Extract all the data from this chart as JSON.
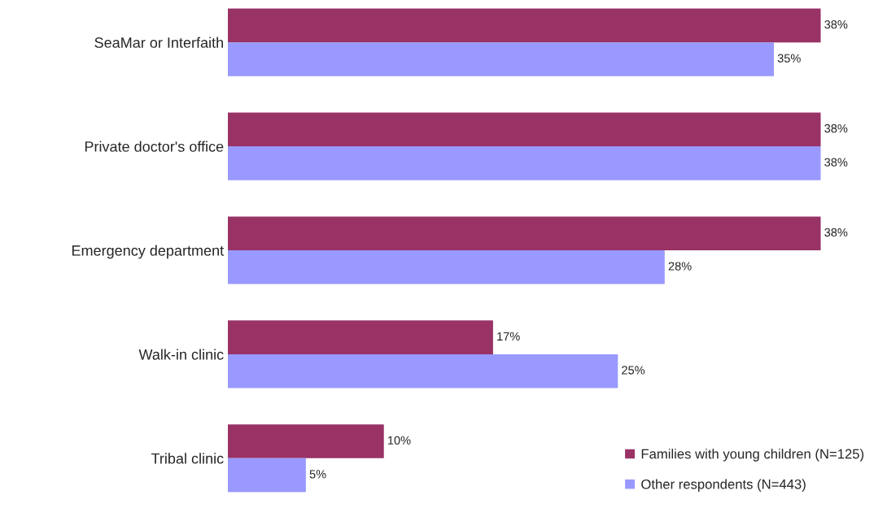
{
  "chart_data": {
    "type": "bar",
    "orientation": "horizontal",
    "categories": [
      "SeaMar or Interfaith",
      "Private doctor's office",
      "Emergency department",
      "Walk-in clinic",
      "Tribal clinic"
    ],
    "series": [
      {
        "name": "Families with young children (N=125)",
        "color": "#993366",
        "values": [
          38,
          38,
          38,
          17,
          10
        ],
        "value_labels": [
          "38%",
          "38%",
          "38%",
          "17%",
          "10%"
        ]
      },
      {
        "name": "Other respondents (N=443)",
        "color": "#9999ff",
        "values": [
          35,
          38,
          28,
          25,
          5
        ],
        "value_labels": [
          "35%",
          "38%",
          "28%",
          "25%",
          "5%"
        ]
      }
    ],
    "tick_labels": "y",
    "grid": false,
    "legend": "bottom right"
  }
}
